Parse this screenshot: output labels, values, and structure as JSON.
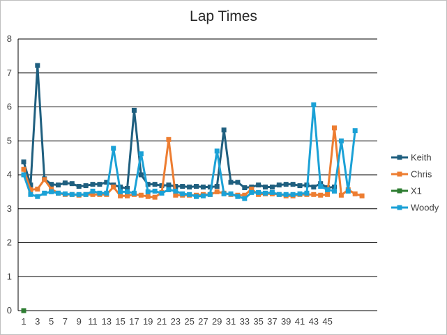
{
  "chart_data": {
    "type": "line",
    "title": "Lap Times",
    "ylim": [
      0,
      8
    ],
    "y_ticks": [
      "0",
      "1",
      "2",
      "3",
      "4",
      "5",
      "6",
      "7",
      "8"
    ],
    "x_tick_labels": [
      "1",
      "3",
      "5",
      "7",
      "9",
      "11",
      "13",
      "15",
      "17",
      "19",
      "21",
      "23",
      "25",
      "27",
      "29",
      "31",
      "33",
      "35",
      "37",
      "39",
      "41",
      "43",
      "45"
    ],
    "grid": "horizontal",
    "legend_position": "right",
    "series": [
      {
        "name": "Keith",
        "color": "#1f5f7f",
        "x": [
          1,
          2,
          3,
          4,
          5,
          6,
          7,
          8,
          9,
          10,
          11,
          12,
          13,
          14,
          15,
          16,
          17,
          18,
          19,
          20,
          21,
          22,
          23,
          24,
          25,
          26,
          27,
          28,
          29,
          30,
          31,
          32,
          33,
          34,
          35,
          36,
          37,
          38,
          39,
          40,
          41,
          42,
          43,
          44,
          45,
          46
        ],
        "values": [
          4.38,
          3.7,
          7.22,
          3.88,
          3.72,
          3.7,
          3.76,
          3.74,
          3.66,
          3.68,
          3.72,
          3.72,
          3.78,
          3.7,
          3.64,
          3.6,
          5.9,
          4.0,
          3.72,
          3.72,
          3.68,
          3.7,
          3.66,
          3.66,
          3.64,
          3.66,
          3.64,
          3.64,
          3.66,
          5.32,
          3.78,
          3.78,
          3.62,
          3.64,
          3.7,
          3.64,
          3.64,
          3.7,
          3.72,
          3.72,
          3.68,
          3.7,
          3.64,
          3.74,
          3.62,
          3.64
        ]
      },
      {
        "name": "Chris",
        "color": "#ed7d31",
        "x": [
          1,
          2,
          3,
          4,
          5,
          6,
          7,
          8,
          9,
          10,
          11,
          12,
          13,
          14,
          15,
          16,
          17,
          18,
          19,
          20,
          21,
          22,
          23,
          24,
          25,
          26,
          27,
          28,
          29,
          30,
          31,
          32,
          33,
          34,
          35,
          36,
          37,
          38,
          39,
          40,
          41,
          42,
          43,
          44,
          45,
          46,
          47,
          48,
          49,
          50
        ],
        "values": [
          4.16,
          3.56,
          3.58,
          3.86,
          3.58,
          3.46,
          3.42,
          3.42,
          3.4,
          3.42,
          3.42,
          3.42,
          3.42,
          3.64,
          3.38,
          3.38,
          3.42,
          3.4,
          3.36,
          3.34,
          3.48,
          5.04,
          3.4,
          3.4,
          3.4,
          3.4,
          3.42,
          3.42,
          3.5,
          3.46,
          3.42,
          3.4,
          3.4,
          3.58,
          3.42,
          3.44,
          3.44,
          3.42,
          3.38,
          3.38,
          3.42,
          3.42,
          3.42,
          3.4,
          3.42,
          5.38,
          3.4,
          3.56,
          3.44,
          3.38
        ]
      },
      {
        "name": "X1",
        "color": "#2e7d32",
        "x": [
          1
        ],
        "values": [
          0
        ]
      },
      {
        "name": "Woody",
        "color": "#1ba1d6",
        "x": [
          1,
          2,
          3,
          4,
          5,
          6,
          7,
          8,
          9,
          10,
          11,
          12,
          13,
          14,
          15,
          16,
          17,
          18,
          19,
          20,
          21,
          22,
          23,
          24,
          25,
          26,
          27,
          28,
          29,
          30,
          31,
          32,
          33,
          34,
          35,
          36,
          37,
          38,
          39,
          40,
          41,
          42,
          43,
          44,
          45,
          46,
          47,
          48,
          49
        ],
        "values": [
          4.0,
          3.42,
          3.36,
          3.46,
          3.5,
          3.46,
          3.44,
          3.42,
          3.42,
          3.42,
          3.52,
          3.46,
          3.46,
          4.78,
          3.5,
          3.5,
          3.46,
          4.62,
          3.5,
          3.52,
          3.46,
          3.56,
          3.52,
          3.44,
          3.42,
          3.36,
          3.38,
          3.42,
          4.7,
          3.44,
          3.44,
          3.36,
          3.3,
          3.48,
          3.48,
          3.46,
          3.48,
          3.42,
          3.42,
          3.42,
          3.44,
          3.46,
          6.06,
          3.66,
          3.56,
          3.52,
          5.0,
          3.52,
          5.3
        ]
      }
    ]
  }
}
